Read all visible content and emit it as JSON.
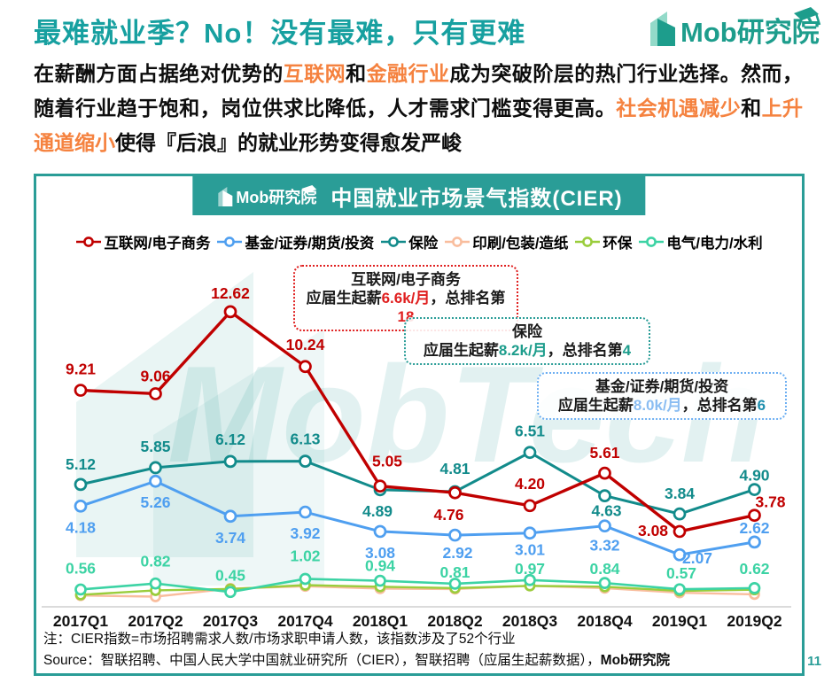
{
  "page": {
    "title": "最难就业季？No！没有最难，只有更难",
    "logo_text": "Mob研究院",
    "page_number": "11",
    "colors": {
      "title_teal": "#17a0a0",
      "accent_teal": "#2a9d97",
      "highlight_orange": "#f5823f"
    },
    "intro_segments": [
      {
        "text": "在薪酬方面占据绝对优势的",
        "highlight": false
      },
      {
        "text": "互联网",
        "highlight": true
      },
      {
        "text": "和",
        "highlight": false
      },
      {
        "text": "金融行业",
        "highlight": true
      },
      {
        "text": "成为突破阶层的热门行业选择。然而，随着行业趋于饱和，岗位供求比降低，人才需求门槛变得更高。",
        "highlight": false
      },
      {
        "text": "社会机遇减少",
        "highlight": true
      },
      {
        "text": "和",
        "highlight": false
      },
      {
        "text": "上升通道缩小",
        "highlight": true
      },
      {
        "text": "使得『后浪』的就业形势变得愈发严峻",
        "highlight": false
      }
    ]
  },
  "chart_card": {
    "banner": {
      "logo_text": "Mob研究院",
      "title": "中国就业市场景气指数(CIER)"
    },
    "watermark_text": "MobTech",
    "callouts": [
      {
        "title": "互联网/电子商务",
        "prefix": "应届生起薪",
        "salary": "6.6k/月",
        "mid": "，总排名第",
        "rank": "18",
        "color": "#e02020"
      },
      {
        "title": "保险",
        "prefix": "应届生起薪",
        "salary": "8.2k/月",
        "mid": "，总排名第",
        "rank": "4",
        "color": "#2a9d97"
      },
      {
        "title": "基金/证券/期货/投资",
        "prefix": "应届生起薪",
        "salary": "8.0k/月",
        "mid": "，总排名第",
        "rank": "6",
        "color": "#6fb0f2"
      }
    ],
    "note": "注：CIER指数=市场招聘需求人数/市场求职申请人数，该指数涉及了52个行业",
    "source_prefix": "Source：智联招聘、中国人民大学中国就业研究所（CIER），智联招聘（应届生起薪数据），",
    "source_bold": "Mob研究院"
  },
  "chart_data": {
    "type": "line",
    "title": "中国就业市场景气指数(CIER)",
    "categories": [
      "2017Q1",
      "2017Q2",
      "2017Q3",
      "2017Q4",
      "2018Q1",
      "2018Q2",
      "2018Q3",
      "2018Q4",
      "2019Q1",
      "2019Q2"
    ],
    "series": [
      {
        "name": "互联网/电子商务",
        "color": "#c00000",
        "labeled": true,
        "values": [
          9.21,
          9.06,
          12.62,
          10.24,
          5.05,
          4.76,
          4.2,
          5.61,
          3.08,
          3.78
        ]
      },
      {
        "name": "基金/证券/期货/投资",
        "color": "#4f9ff0",
        "labeled": true,
        "values": [
          4.18,
          5.26,
          3.74,
          3.92,
          3.08,
          2.92,
          3.01,
          3.32,
          2.07,
          2.62
        ]
      },
      {
        "name": "保险",
        "color": "#128b8b",
        "labeled": true,
        "values": [
          5.12,
          5.85,
          6.12,
          6.13,
          4.89,
          4.81,
          6.51,
          4.63,
          3.84,
          4.9
        ]
      },
      {
        "name": "印刷/包装/造纸",
        "color": "#f9bd9d",
        "labeled": false,
        "values": [
          0.3,
          0.25,
          0.6,
          0.7,
          0.6,
          0.58,
          0.72,
          0.62,
          0.42,
          0.35
        ]
      },
      {
        "name": "环保",
        "color": "#9acd3c",
        "labeled": false,
        "values": [
          0.33,
          0.52,
          0.58,
          0.75,
          0.68,
          0.62,
          0.72,
          0.68,
          0.5,
          0.55
        ]
      },
      {
        "name": "电气/电力/水利",
        "color": "#3cd3a4",
        "labeled": true,
        "values": [
          0.56,
          0.82,
          0.45,
          1.02,
          0.94,
          0.81,
          0.97,
          0.84,
          0.57,
          0.62
        ]
      }
    ],
    "xlabel": "",
    "ylabel": "",
    "ylim": [
      0,
      14
    ],
    "grid": false,
    "legend_position": "top"
  }
}
